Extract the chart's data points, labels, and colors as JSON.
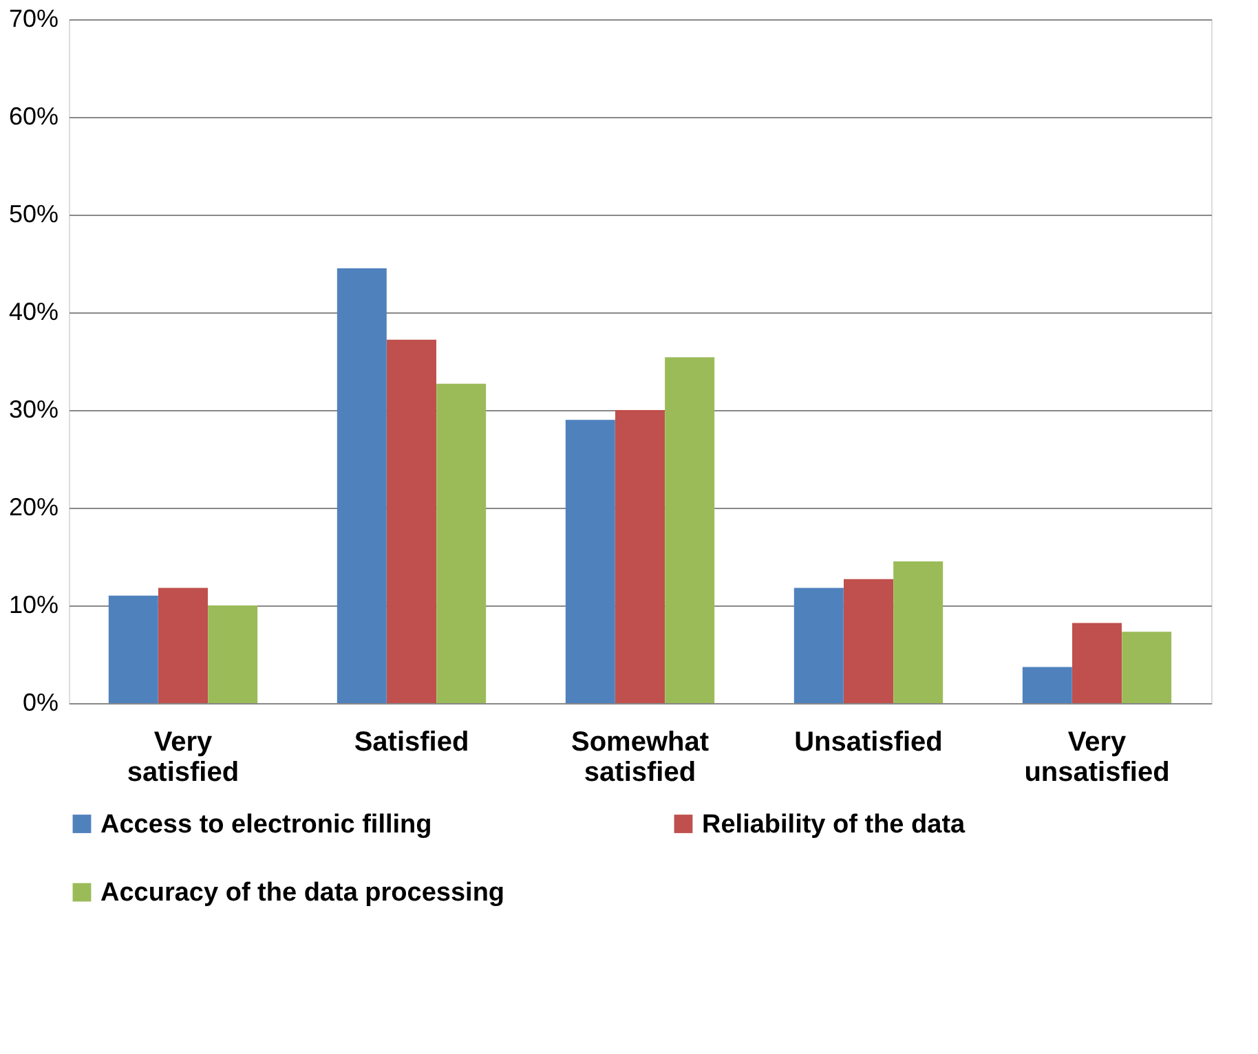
{
  "chart_data": {
    "type": "bar",
    "categories": [
      "Very satisfied",
      "Satisfied",
      "Somewhat satisfied",
      "Unsatisfied",
      "Very unsatisfied"
    ],
    "series": [
      {
        "name": "Access to electronic filling",
        "color": "#4f81bd",
        "values": [
          11.0,
          44.5,
          29.0,
          11.8,
          3.7
        ]
      },
      {
        "name": "Reliability of the data",
        "color": "#c0504d",
        "values": [
          11.8,
          37.2,
          30.0,
          12.7,
          8.2
        ]
      },
      {
        "name": "Accuracy of the data processing",
        "color": "#9bbb59",
        "values": [
          10.0,
          32.7,
          35.4,
          14.5,
          7.3
        ]
      }
    ],
    "ylim": [
      0,
      70
    ],
    "yticks": [
      {
        "value": 0,
        "label": "0%"
      },
      {
        "value": 10,
        "label": "10%"
      },
      {
        "value": 20,
        "label": "20%"
      },
      {
        "value": 30,
        "label": "30%"
      },
      {
        "value": 40,
        "label": "40%"
      },
      {
        "value": 50,
        "label": "50%"
      },
      {
        "value": 60,
        "label": "60%"
      },
      {
        "value": 70,
        "label": "70%"
      }
    ],
    "grid": "y",
    "legend": "bottom"
  }
}
